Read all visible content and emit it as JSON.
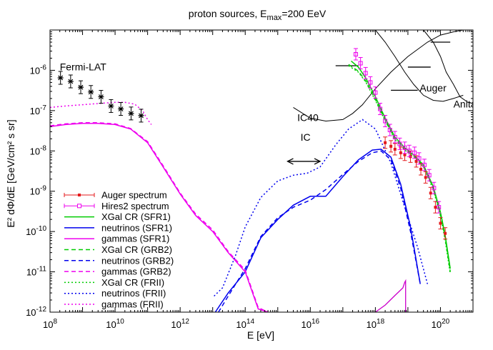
{
  "chart_data": {
    "type": "line",
    "title": "proton sources,  E",
    "title_sub": "max",
    "title_tail": "=200 EeV",
    "xlabel": "E [eV]",
    "ylabel": "E² dΦ/dE [GeV/cm² s sr]",
    "x_scale": "log",
    "y_scale": "log",
    "xlim": [
      100000000.0,
      1e+21
    ],
    "ylim": [
      1e-12,
      1e-05
    ],
    "x_tick_labels": [
      {
        "value": 100000000.0,
        "base": "10",
        "exp": "8"
      },
      {
        "value": 10000000000.0,
        "base": "10",
        "exp": "10"
      },
      {
        "value": 1000000000000.0,
        "base": "10",
        "exp": "12"
      },
      {
        "value": 100000000000000.0,
        "base": "10",
        "exp": "14"
      },
      {
        "value": 1e+16,
        "base": "10",
        "exp": "16"
      },
      {
        "value": 1e+18,
        "base": "10",
        "exp": "18"
      },
      {
        "value": 1e+20,
        "base": "10",
        "exp": "20"
      }
    ],
    "y_tick_labels": [
      {
        "value": 1e-06,
        "base": "10",
        "exp": "-6"
      },
      {
        "value": 1e-07,
        "base": "10",
        "exp": "-7"
      },
      {
        "value": 1e-08,
        "base": "10",
        "exp": "-8"
      },
      {
        "value": 1e-09,
        "base": "10",
        "exp": "-9"
      },
      {
        "value": 1e-10,
        "base": "10",
        "exp": "-10"
      },
      {
        "value": 1e-11,
        "base": "10",
        "exp": "-11"
      },
      {
        "value": 1e-12,
        "base": "10",
        "exp": "-12"
      }
    ],
    "annotations": [
      {
        "text": "Fermi-LAT",
        "x": 200000000.0,
        "y": 1e-06
      },
      {
        "text": "IC40",
        "x": 4000000000000000.0,
        "y": 5.5e-08
      },
      {
        "text": "Auger",
        "x": 2.3e+19,
        "y": 3e-07
      },
      {
        "text": "Anita",
        "x": 2.5e+20,
        "y": 1.2e-07
      },
      {
        "text": "IC",
        "x": 5000000000000000.0,
        "y": 1.8e-08
      }
    ],
    "ic_arrow": {
      "x_from": 2000000000000000.0,
      "x_to": 2e+16,
      "y": 5.5e-09
    },
    "series": [
      {
        "name": "Auger spectrum",
        "color": "#e41a1c",
        "style": "points",
        "x": [
          2e+18,
          3e+18,
          4e+18,
          6e+18,
          8e+18,
          1.2e+19,
          1.8e+19,
          2.5e+19,
          3.5e+19,
          5e+19,
          7e+19,
          1e+20,
          1.4e+20
        ],
        "y": [
          1.6e-08,
          1.3e-08,
          1.1e-08,
          9e-09,
          8e-09,
          7.2e-09,
          5.5e-09,
          3.5e-09,
          2.2e-09,
          9e-10,
          4e-10,
          1.6e-10,
          9e-11
        ]
      },
      {
        "name": "Hires2 spectrum",
        "color": "#ee00ee",
        "style": "points",
        "x": [
          2.5e+17,
          3.5e+17,
          5e+17,
          7e+17,
          1e+18,
          1.4e+18,
          2e+18,
          2.8e+18,
          4e+18,
          5.6e+18,
          8e+18,
          1.1e+19,
          1.6e+19,
          2.2e+19,
          3.2e+19,
          4.5e+19,
          6.3e+19,
          8.9e+19
        ],
        "y": [
          2.5e-06,
          1.5e-06,
          8.5e-07,
          5e-07,
          2.8e-07,
          1.1e-07,
          5.5e-08,
          3.3e-08,
          2.2e-08,
          1.5e-08,
          1.2e-08,
          1e-08,
          9e-09,
          6.5e-09,
          4.5e-09,
          2.5e-09,
          1.2e-09,
          4e-10
        ]
      },
      {
        "name": "XGal CR (SFR1)",
        "color": "#00cc00",
        "style": "solid",
        "x": [
          1.8e+17,
          3e+17,
          5e+17,
          1e+18,
          2e+18,
          4e+18,
          8e+18,
          1.5e+19,
          3e+19,
          6e+19,
          1e+20,
          1.4e+20,
          2e+20
        ],
        "y": [
          1.7e-06,
          1.2e-06,
          6.5e-07,
          2.2e-07,
          6.5e-08,
          2.2e-08,
          1.2e-08,
          8e-09,
          4.5e-09,
          1.3e-09,
          3e-10,
          8e-11,
          1.2e-11
        ]
      },
      {
        "name": "neutrinos (SFR1)",
        "color": "#0000ee",
        "style": "solid",
        "x": [
          12000000000000.0,
          30000000000000.0,
          100000000000000.0,
          300000000000000.0,
          1000000000000000.0,
          3000000000000000.0,
          1e+16,
          3e+16,
          1e+17,
          3e+17,
          8e+17,
          1.5e+18,
          3e+18,
          6e+18,
          1.2e+19,
          2.4e+19
        ],
        "y": [
          1e-12,
          3e-12,
          1e-11,
          7e-11,
          2e-10,
          4.5e-10,
          7.5e-10,
          7.5e-10,
          2.3e-09,
          6e-09,
          1.05e-08,
          1.1e-08,
          7e-09,
          1.5e-09,
          1.3e-10,
          5e-12
        ]
      },
      {
        "name": "gammas (SFR1)",
        "color": "#ee00ee",
        "style": "solid",
        "x": [
          100000000.0,
          300000000.0,
          1000000000.0,
          3000000000.0,
          10000000000.0,
          30000000000.0,
          100000000000.0,
          300000000000.0,
          1000000000000.0,
          3000000000000.0,
          10000000000000.0,
          30000000000000.0,
          100000000000000.0,
          250000000000000.0,
          500000000000000.0
        ],
        "y": [
          4e-08,
          4.5e-08,
          4.8e-08,
          4.8e-08,
          4.5e-08,
          3.5e-08,
          1.6e-08,
          4e-09,
          8.5e-10,
          2.5e-10,
          1e-10,
          3e-11,
          1e-11,
          1.2e-12,
          1e-12
        ]
      },
      {
        "name": "XGal CR (GRB2)",
        "color": "#00cc00",
        "style": "dashed",
        "x": [
          1.5e+17,
          3e+17,
          5e+17,
          1e+18,
          2e+18,
          4e+18,
          8e+18,
          1.5e+19,
          3e+19,
          6e+19,
          1e+20,
          1.4e+20,
          2e+20
        ],
        "y": [
          1.4e-06,
          9.5e-07,
          5.5e-07,
          1.9e-07,
          5.8e-08,
          2e-08,
          1.1e-08,
          7.5e-09,
          4.2e-09,
          1.2e-09,
          2.6e-10,
          7e-11,
          1e-11
        ]
      },
      {
        "name": "neutrinos (GRB2)",
        "color": "#0000ee",
        "style": "dashed",
        "x": [
          15000000000000.0,
          30000000000000.0,
          100000000000000.0,
          300000000000000.0,
          1000000000000000.0,
          3000000000000000.0,
          1e+16,
          3e+16,
          1e+17,
          3e+17,
          8e+17,
          1.5e+18,
          3e+18,
          6e+18,
          1.2e+19,
          2.4e+19
        ],
        "y": [
          1e-12,
          2.5e-12,
          1.2e-11,
          7.5e-11,
          2.2e-10,
          4e-10,
          6e-10,
          1.1e-09,
          2.6e-09,
          5.5e-09,
          9e-09,
          1e-08,
          6e-09,
          1.2e-09,
          1e-10,
          5e-12
        ]
      },
      {
        "name": "gammas (GRB2)",
        "color": "#ee00ee",
        "style": "dashed",
        "x": [
          100000000.0,
          300000000.0,
          1000000000.0,
          3000000000.0,
          10000000000.0,
          30000000000.0,
          100000000000.0,
          300000000000.0,
          1000000000000.0,
          3000000000000.0,
          10000000000000.0,
          30000000000000.0,
          100000000000000.0,
          250000000000000.0,
          500000000000000.0
        ],
        "y": [
          4.2e-08,
          4.7e-08,
          5e-08,
          5e-08,
          4.7e-08,
          3.6e-08,
          1.7e-08,
          4.3e-09,
          9e-10,
          2.7e-10,
          1.1e-10,
          3.2e-11,
          1.1e-11,
          1.3e-12,
          1e-12
        ]
      },
      {
        "name": "XGal CR (FRII)",
        "color": "#00cc00",
        "style": "dotted",
        "x": [
          1.5e+17,
          3e+17,
          5e+17,
          1e+18,
          2e+18,
          4e+18,
          8e+18,
          1.5e+19,
          3e+19,
          6e+19,
          1e+20,
          1.4e+20,
          2e+20
        ],
        "y": [
          1.3e-06,
          9e-07,
          5.2e-07,
          1.8e-07,
          5.5e-08,
          1.9e-08,
          1.05e-08,
          7.2e-09,
          4e-09,
          1.1e-09,
          2.4e-10,
          6e-11,
          9e-12
        ]
      },
      {
        "name": "neutrinos (FRII)",
        "color": "#0000ee",
        "style": "dotted",
        "x": [
          11000000000000.0,
          20000000000000.0,
          50000000000000.0,
          100000000000000.0,
          300000000000000.0,
          1000000000000000.0,
          3000000000000000.0,
          8000000000000000.0,
          2e+16,
          6e+16,
          1.5e+17,
          4e+17,
          1e+18,
          3e+18,
          8e+18,
          2e+19,
          4e+19
        ],
        "y": [
          2.5e-12,
          4e-12,
          2.5e-11,
          1.3e-10,
          7e-10,
          1.8e-09,
          2.5e-09,
          2.8e-09,
          4e-09,
          1.4e-08,
          3.5e-08,
          6e-08,
          3.5e-08,
          5e-09,
          4e-10,
          4e-11,
          5e-12
        ]
      },
      {
        "name": "gammas (FRII)",
        "color": "#ee00ee",
        "style": "dotted",
        "x": [
          100000000.0,
          300000000.0,
          1000000000.0,
          3000000000.0,
          10000000000.0,
          20000000000.0,
          40000000000.0,
          70000000000.0,
          100000000000.0,
          130000000000.0
        ],
        "y": [
          1.2e-07,
          1.3e-07,
          1.4e-07,
          1.5e-07,
          1.6e-07,
          1.6e-07,
          1.45e-07,
          1e-07,
          6e-08,
          4.5e-08
        ]
      }
    ],
    "extra_curves": [
      {
        "label": "IC40",
        "color": "#000000",
        "style": "solid",
        "x": [
          3000000000000000.0,
          1e+16,
          3e+16,
          1e+17,
          2e+17,
          4e+17,
          1e+18,
          3e+18,
          1e+19,
          4e+19,
          1e+20,
          2.5e+20,
          5e+20
        ],
        "y": [
          1.2e-07,
          6.5e-08,
          5.5e-08,
          6e-08,
          8.5e-08,
          1.4e-07,
          3.5e-07,
          9e-07,
          2.2e-06,
          5e-06,
          7.5e-06,
          9e-06,
          1e-05
        ]
      },
      {
        "label": "Auger",
        "color": "#000000",
        "style": "solid",
        "x": [
          1e+18,
          2e+18,
          4e+18,
          8e+18,
          1.5e+19,
          3e+19,
          6e+19,
          1.2e+20,
          2.5e+20,
          5e+20
        ],
        "y": [
          1e-05,
          5e-06,
          2.2e-06,
          9e-07,
          4.5e-07,
          2.4e-07,
          1.8e-07,
          1.7e-07,
          2e-07,
          2.4e-07
        ]
      },
      {
        "label": "Anita",
        "color": "#000000",
        "style": "solid",
        "x": [
          3e+19,
          6e+19,
          1e+20,
          1.5e+20,
          2.5e+20,
          4e+20,
          7e+20,
          1e+21
        ],
        "y": [
          1e-05,
          5e-06,
          2.2e-06,
          9e-07,
          4.5e-07,
          2.2e-07,
          1.6e-07,
          1.5e-07
        ]
      }
    ],
    "auger_limit_steps": [
      {
        "x1": 6e+16,
        "x2": 3e+17,
        "y": 1.3e-06
      },
      {
        "x1": 3e+18,
        "x2": 2e+19,
        "y": 3.2e-07
      },
      {
        "x1": 1e+19,
        "x2": 5e+19,
        "y": 1.2e-06
      },
      {
        "x1": 5e+19,
        "x2": 2e+20,
        "y": 5e-06
      }
    ],
    "fermi_points": {
      "x": [
        210000000.0,
        430000000.0,
        880000000.0,
        1800000000.0,
        3700000000.0,
        7500000000.0,
        15000000000.0,
        31000000000.0,
        63000000000.0
      ],
      "y": [
        6.5e-07,
        5.3e-07,
        3.8e-07,
        2.9e-07,
        2.2e-07,
        1.3e-07,
        1.1e-07,
        8.5e-08,
        7.5e-08
      ],
      "color": "#000000"
    },
    "gamma_bump": {
      "color": "#cc00cc",
      "x": [
        1e+18,
        2e+18,
        4e+18,
        7e+18,
        8e+18,
        8.5e+18,
        8.5e+18
      ],
      "y": [
        1e-12,
        1.5e-12,
        2.6e-12,
        4e-12,
        5.5e-12,
        6e-12,
        1e-12
      ]
    },
    "legend_position": "bottom-left"
  }
}
